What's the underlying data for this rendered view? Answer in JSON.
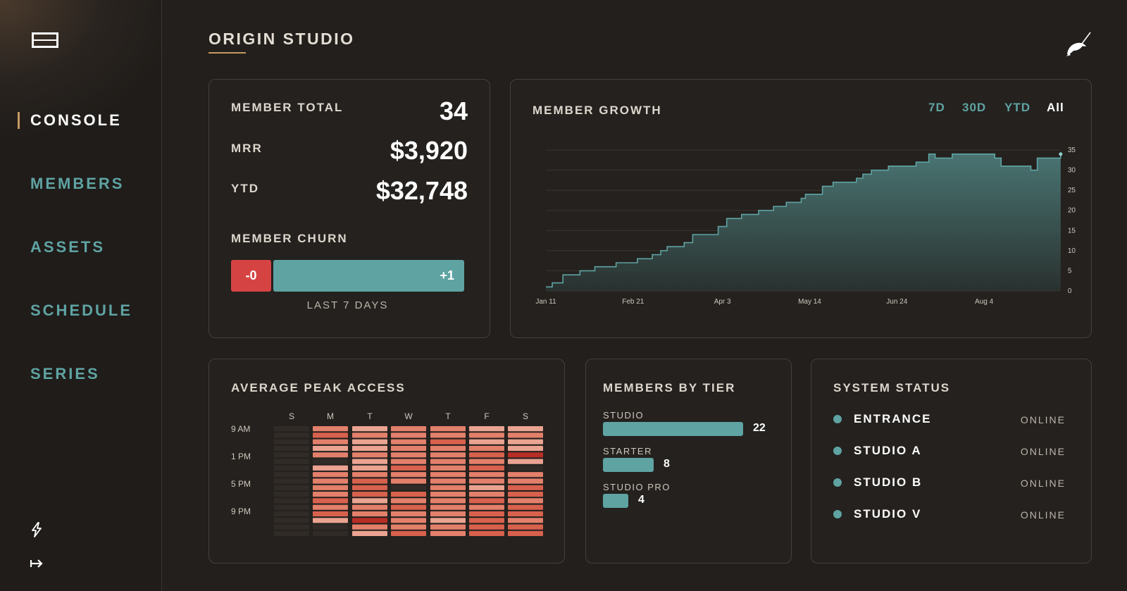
{
  "app": {
    "title": "ORIGIN STUDIO"
  },
  "sidebar": {
    "items": [
      {
        "label": "CONSOLE",
        "active": true
      },
      {
        "label": "MEMBERS",
        "active": false
      },
      {
        "label": "ASSETS",
        "active": false
      },
      {
        "label": "SCHEDULE",
        "active": false
      },
      {
        "label": "SERIES",
        "active": false
      }
    ],
    "bottom_icons": [
      "lightning-icon",
      "sign-out-icon"
    ]
  },
  "stats": {
    "member_total_label": "MEMBER TOTAL",
    "member_total_value": "34",
    "mrr_label": "MRR",
    "mrr_value": "$3,920",
    "ytd_label": "YTD",
    "ytd_value": "$32,748",
    "churn_label": "MEMBER CHURN",
    "churn_negative": "-0",
    "churn_positive": "+1",
    "churn_period": "LAST 7 DAYS"
  },
  "growth": {
    "title": "MEMBER GROWTH",
    "ranges": [
      {
        "label": "7D",
        "active": false
      },
      {
        "label": "30D",
        "active": false
      },
      {
        "label": "YTD",
        "active": false
      },
      {
        "label": "All",
        "active": true
      }
    ]
  },
  "chart_data": {
    "type": "area",
    "title": "MEMBER GROWTH",
    "x_ticks": [
      "Jan 11",
      "Feb 21",
      "Apr 3",
      "May 14",
      "Jun 24",
      "Aug 4"
    ],
    "y_ticks": [
      0,
      5,
      10,
      15,
      20,
      25,
      30,
      35
    ],
    "ylim": [
      0,
      35
    ],
    "grid": true,
    "x": [
      "Jan 11",
      "Jan 14",
      "Jan 19",
      "Jan 27",
      "Feb 3",
      "Feb 13",
      "Feb 23",
      "Mar 1",
      "Mar 5",
      "Mar 8",
      "Mar 13",
      "Mar 16",
      "Mar 20",
      "Apr 1",
      "Apr 5",
      "Apr 9",
      "Apr 12",
      "Apr 20",
      "Apr 27",
      "May 3",
      "May 10",
      "May 12",
      "May 20",
      "May 25",
      "Jun 1",
      "Jun 5",
      "Jun 8",
      "Jun 12",
      "Jun 17",
      "Jun 20",
      "Jun 25",
      "Jul 3",
      "Jul 9",
      "Jul 12",
      "Jul 20",
      "Jul 30",
      "Aug 1",
      "Aug 9",
      "Aug 12",
      "Aug 21",
      "Aug 26",
      "Aug 29",
      "Sep 7",
      "Sep 9"
    ],
    "values": [
      1,
      2,
      4,
      5,
      6,
      7,
      8,
      9,
      10,
      11,
      11,
      12,
      14,
      16,
      18,
      18,
      19,
      20,
      21,
      22,
      23,
      24,
      26,
      27,
      27,
      28,
      29,
      30,
      30,
      31,
      31,
      32,
      34,
      33,
      34,
      34,
      34,
      33,
      31,
      31,
      30,
      33,
      33,
      34
    ]
  },
  "heatmap": {
    "title": "AVERAGE PEAK ACCESS",
    "days": [
      "S",
      "M",
      "T",
      "W",
      "T",
      "F",
      "S"
    ],
    "times": [
      "9 AM",
      "1 PM",
      "5 PM",
      "9 PM"
    ],
    "levels": [
      [
        0,
        3,
        2,
        3,
        3,
        2,
        2
      ],
      [
        0,
        4,
        3,
        3,
        3,
        3,
        3
      ],
      [
        0,
        3,
        2,
        3,
        4,
        2,
        2
      ],
      [
        0,
        2,
        2,
        3,
        3,
        3,
        2
      ],
      [
        0,
        3,
        3,
        3,
        3,
        4,
        5
      ],
      [
        0,
        0,
        2,
        3,
        3,
        3,
        2
      ],
      [
        0,
        2,
        2,
        4,
        3,
        4,
        0
      ],
      [
        0,
        3,
        3,
        3,
        3,
        3,
        3
      ],
      [
        0,
        3,
        4,
        3,
        3,
        3,
        3
      ],
      [
        0,
        3,
        4,
        0,
        3,
        2,
        4
      ],
      [
        0,
        3,
        4,
        4,
        3,
        3,
        4
      ],
      [
        0,
        4,
        2,
        3,
        3,
        4,
        3
      ],
      [
        0,
        3,
        3,
        4,
        3,
        3,
        4
      ],
      [
        0,
        4,
        3,
        3,
        3,
        4,
        4
      ],
      [
        0,
        2,
        5,
        3,
        2,
        4,
        3
      ],
      [
        0,
        0,
        3,
        3,
        3,
        4,
        4
      ],
      [
        0,
        0,
        2,
        4,
        3,
        4,
        4
      ]
    ],
    "level_colors": [
      "#302b27",
      "#f3c3b4",
      "#eba391",
      "#e3806b",
      "#d8614d",
      "#b82e26"
    ]
  },
  "tiers": {
    "title": "MEMBERS BY TIER",
    "items": [
      {
        "label": "STUDIO",
        "value": 22
      },
      {
        "label": "STARTER",
        "value": 8
      },
      {
        "label": "STUDIO PRO",
        "value": 4
      }
    ]
  },
  "system_status": {
    "title": "SYSTEM STATUS",
    "items": [
      {
        "name": "ENTRANCE",
        "state": "ONLINE"
      },
      {
        "name": "STUDIO A",
        "state": "ONLINE"
      },
      {
        "name": "STUDIO B",
        "state": "ONLINE"
      },
      {
        "name": "STUDIO V",
        "state": "ONLINE"
      }
    ]
  },
  "colors": {
    "accent": "#5fa3a3",
    "brand_gold": "#c79a63",
    "negative": "#d64343",
    "background": "#221f1c"
  }
}
